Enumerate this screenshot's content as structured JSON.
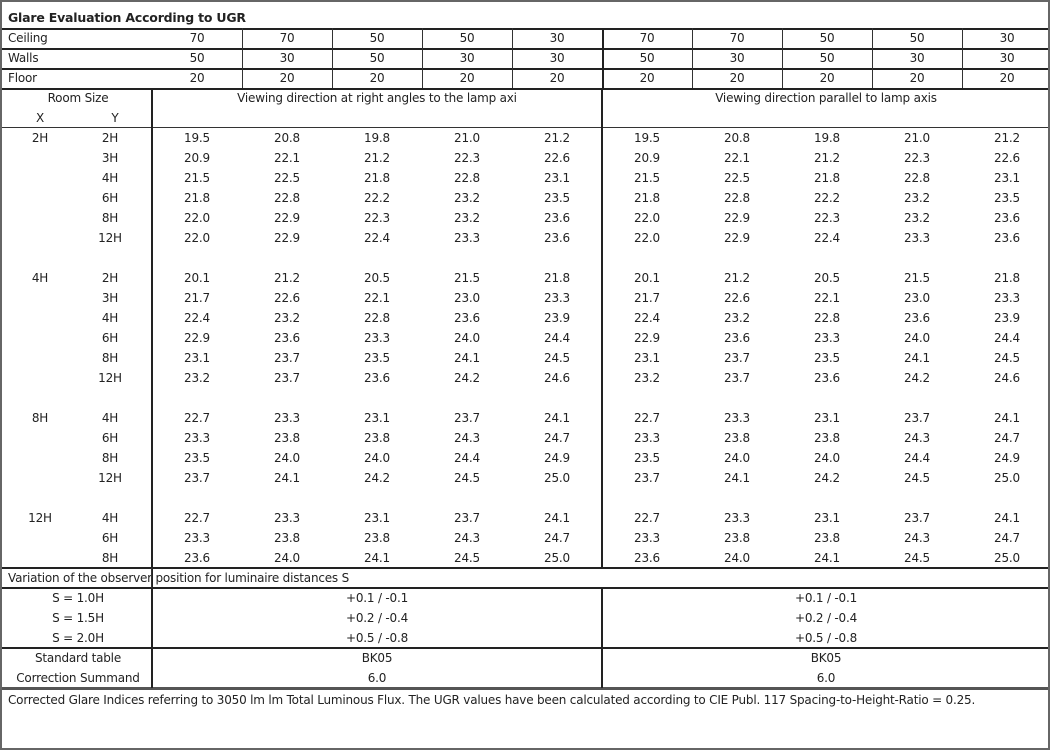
{
  "title": "Glare Evaluation According to UGR",
  "reflectances": [
    {
      "label": "Ceiling",
      "values": [
        "70",
        "70",
        "50",
        "50",
        "30",
        "70",
        "70",
        "50",
        "50",
        "30"
      ]
    },
    {
      "label": "Walls",
      "values": [
        "50",
        "30",
        "50",
        "30",
        "30",
        "50",
        "30",
        "50",
        "30",
        "30"
      ]
    },
    {
      "label": "Floor",
      "values": [
        "20",
        "20",
        "20",
        "20",
        "20",
        "20",
        "20",
        "20",
        "20",
        "20"
      ]
    }
  ],
  "room_size_label": "Room Size",
  "x_label": "X",
  "y_label": "Y",
  "direction_right_angles": "Viewing direction at right angles to the lamp axi",
  "direction_parallel": "Viewing direction parallel to lamp axis",
  "groups": [
    {
      "x": "2H",
      "rows": [
        {
          "y": "2H",
          "values": [
            "19.5",
            "20.8",
            "19.8",
            "21.0",
            "21.2",
            "19.5",
            "20.8",
            "19.8",
            "21.0",
            "21.2"
          ]
        },
        {
          "y": "3H",
          "values": [
            "20.9",
            "22.1",
            "21.2",
            "22.3",
            "22.6",
            "20.9",
            "22.1",
            "21.2",
            "22.3",
            "22.6"
          ]
        },
        {
          "y": "4H",
          "values": [
            "21.5",
            "22.5",
            "21.8",
            "22.8",
            "23.1",
            "21.5",
            "22.5",
            "21.8",
            "22.8",
            "23.1"
          ]
        },
        {
          "y": "6H",
          "values": [
            "21.8",
            "22.8",
            "22.2",
            "23.2",
            "23.5",
            "21.8",
            "22.8",
            "22.2",
            "23.2",
            "23.5"
          ]
        },
        {
          "y": "8H",
          "values": [
            "22.0",
            "22.9",
            "22.3",
            "23.2",
            "23.6",
            "22.0",
            "22.9",
            "22.3",
            "23.2",
            "23.6"
          ]
        },
        {
          "y": "12H",
          "values": [
            "22.0",
            "22.9",
            "22.4",
            "23.3",
            "23.6",
            "22.0",
            "22.9",
            "22.4",
            "23.3",
            "23.6"
          ]
        }
      ]
    },
    {
      "x": "4H",
      "rows": [
        {
          "y": "2H",
          "values": [
            "20.1",
            "21.2",
            "20.5",
            "21.5",
            "21.8",
            "20.1",
            "21.2",
            "20.5",
            "21.5",
            "21.8"
          ]
        },
        {
          "y": "3H",
          "values": [
            "21.7",
            "22.6",
            "22.1",
            "23.0",
            "23.3",
            "21.7",
            "22.6",
            "22.1",
            "23.0",
            "23.3"
          ]
        },
        {
          "y": "4H",
          "values": [
            "22.4",
            "23.2",
            "22.8",
            "23.6",
            "23.9",
            "22.4",
            "23.2",
            "22.8",
            "23.6",
            "23.9"
          ]
        },
        {
          "y": "6H",
          "values": [
            "22.9",
            "23.6",
            "23.3",
            "24.0",
            "24.4",
            "22.9",
            "23.6",
            "23.3",
            "24.0",
            "24.4"
          ]
        },
        {
          "y": "8H",
          "values": [
            "23.1",
            "23.7",
            "23.5",
            "24.1",
            "24.5",
            "23.1",
            "23.7",
            "23.5",
            "24.1",
            "24.5"
          ]
        },
        {
          "y": "12H",
          "values": [
            "23.2",
            "23.7",
            "23.6",
            "24.2",
            "24.6",
            "23.2",
            "23.7",
            "23.6",
            "24.2",
            "24.6"
          ]
        }
      ]
    },
    {
      "x": "8H",
      "rows": [
        {
          "y": "4H",
          "values": [
            "22.7",
            "23.3",
            "23.1",
            "23.7",
            "24.1",
            "22.7",
            "23.3",
            "23.1",
            "23.7",
            "24.1"
          ]
        },
        {
          "y": "6H",
          "values": [
            "23.3",
            "23.8",
            "23.8",
            "24.3",
            "24.7",
            "23.3",
            "23.8",
            "23.8",
            "24.3",
            "24.7"
          ]
        },
        {
          "y": "8H",
          "values": [
            "23.5",
            "24.0",
            "24.0",
            "24.4",
            "24.9",
            "23.5",
            "24.0",
            "24.0",
            "24.4",
            "24.9"
          ]
        },
        {
          "y": "12H",
          "values": [
            "23.7",
            "24.1",
            "24.2",
            "24.5",
            "25.0",
            "23.7",
            "24.1",
            "24.2",
            "24.5",
            "25.0"
          ]
        }
      ]
    },
    {
      "x": "12H",
      "rows": [
        {
          "y": "4H",
          "values": [
            "22.7",
            "23.3",
            "23.1",
            "23.7",
            "24.1",
            "22.7",
            "23.3",
            "23.1",
            "23.7",
            "24.1"
          ]
        },
        {
          "y": "6H",
          "values": [
            "23.3",
            "23.8",
            "23.8",
            "24.3",
            "24.7",
            "23.3",
            "23.8",
            "23.8",
            "24.3",
            "24.7"
          ]
        },
        {
          "y": "8H",
          "values": [
            "23.6",
            "24.0",
            "24.1",
            "24.5",
            "25.0",
            "23.6",
            "24.0",
            "24.1",
            "24.5",
            "25.0"
          ]
        }
      ]
    }
  ],
  "variation_label": "Variation of the observer position for luminaire distances S",
  "variations": [
    {
      "label": "S = 1.0H",
      "right_angles": "+0.1 / -0.1",
      "parallel": "+0.1 / -0.1"
    },
    {
      "label": "S = 1.5H",
      "right_angles": "+0.2 / -0.4",
      "parallel": "+0.2 / -0.4"
    },
    {
      "label": "S = 2.0H",
      "right_angles": "+0.5 / -0.8",
      "parallel": "+0.5 / -0.8"
    }
  ],
  "standard_table": {
    "label": "Standard table",
    "right_angles": "BK05",
    "parallel": "BK05"
  },
  "correction_summand": {
    "label": "Correction Summand",
    "right_angles": "6.0",
    "parallel": "6.0"
  },
  "footer": "Corrected Glare Indices referring to 3050 lm lm Total Luminous Flux. The UGR values have been calculated according to CIE Publ. 117    Spacing-to-Height-Ratio = 0.25."
}
